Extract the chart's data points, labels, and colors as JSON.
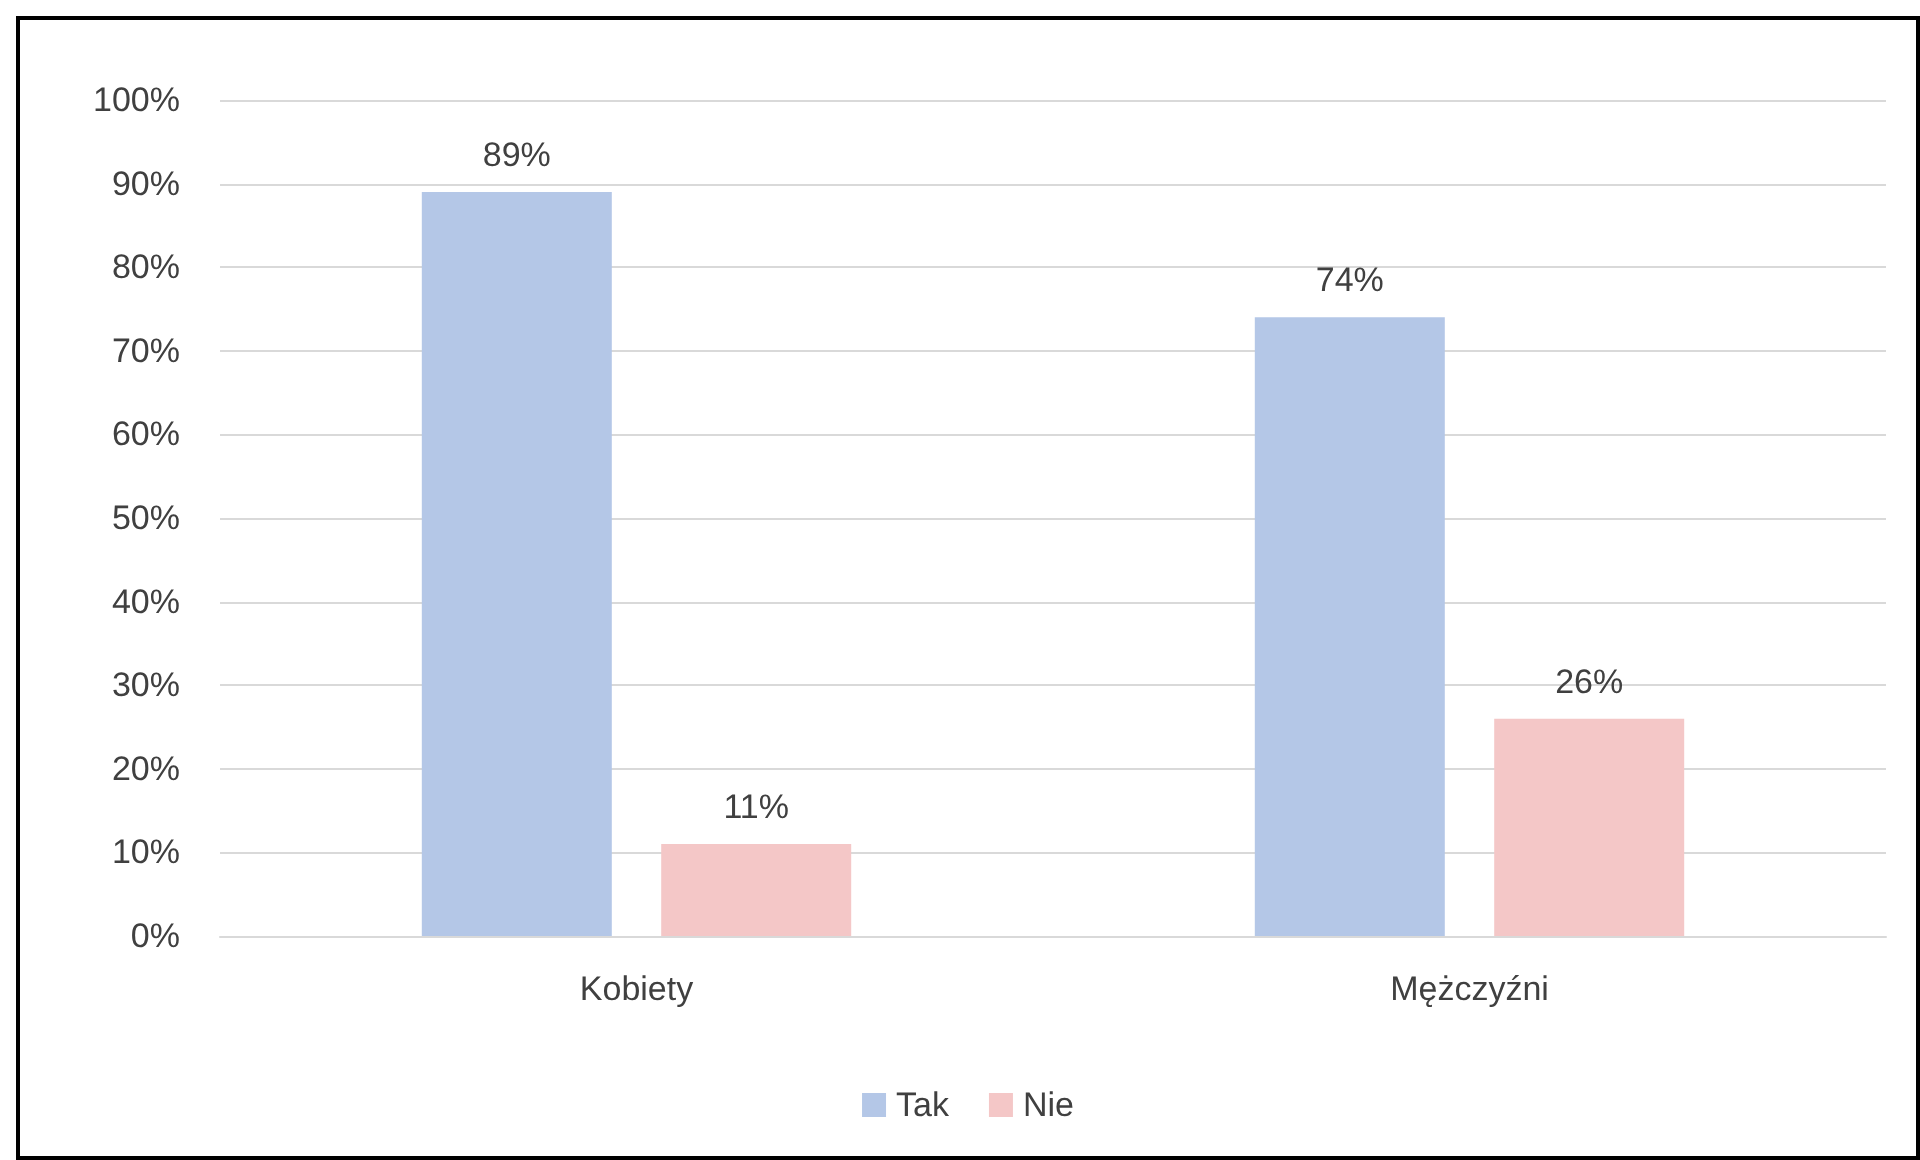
{
  "chart_data": {
    "type": "bar",
    "categories": [
      "Kobiety",
      "Mężczyźni"
    ],
    "series": [
      {
        "name": "Tak",
        "color": "#b4c7e7",
        "values": [
          89,
          74
        ],
        "value_labels": [
          "89%",
          "74%"
        ]
      },
      {
        "name": "Nie",
        "color": "#f4c7c7",
        "values": [
          11,
          26
        ],
        "value_labels": [
          "11%",
          "26%"
        ]
      }
    ],
    "ylim": [
      0,
      100
    ],
    "yticks": [
      {
        "value": 0,
        "label": "0%"
      },
      {
        "value": 10,
        "label": "10%"
      },
      {
        "value": 20,
        "label": "20%"
      },
      {
        "value": 30,
        "label": "30%"
      },
      {
        "value": 40,
        "label": "40%"
      },
      {
        "value": 50,
        "label": "50%"
      },
      {
        "value": 60,
        "label": "60%"
      },
      {
        "value": 70,
        "label": "70%"
      },
      {
        "value": 80,
        "label": "80%"
      },
      {
        "value": 90,
        "label": "90%"
      },
      {
        "value": 100,
        "label": "100%"
      }
    ],
    "grid": "y",
    "legend": "bottom"
  }
}
